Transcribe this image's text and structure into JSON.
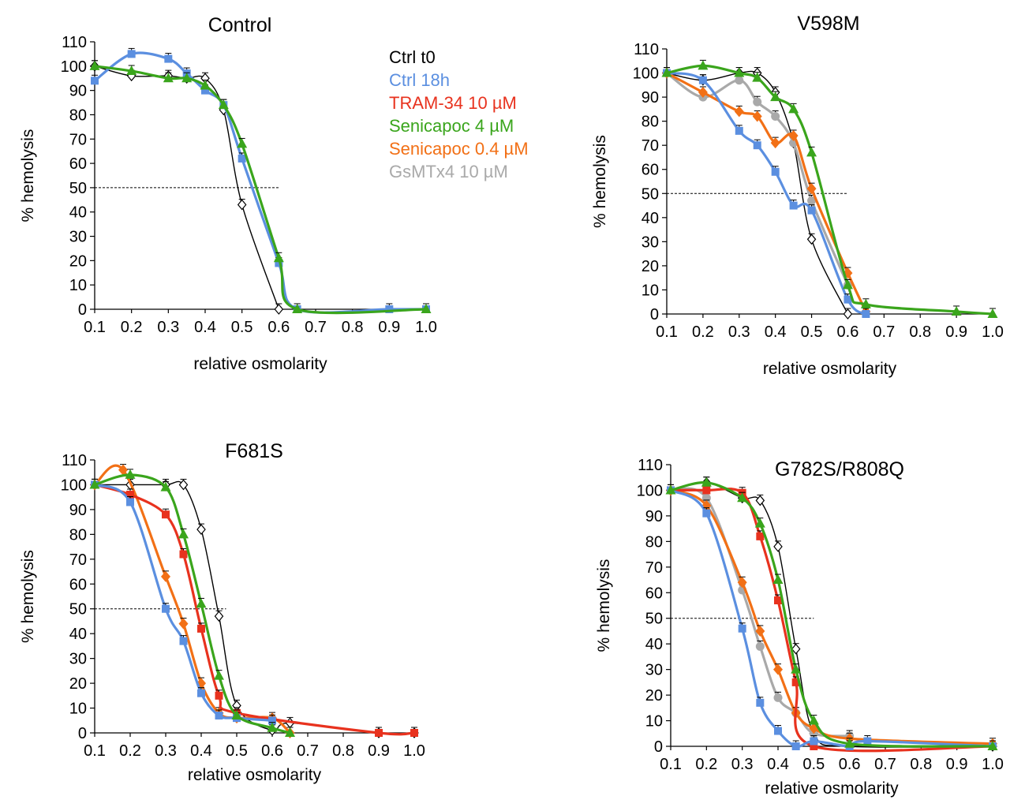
{
  "colors": {
    "ctrl_t0": "#000000",
    "ctrl_18h": "#5b8fe0",
    "tram34": "#e8321e",
    "senicapoc4": "#3aa51c",
    "senicapoc04": "#f27016",
    "gsmtx4": "#a9a9a9"
  },
  "legend": [
    {
      "key": "ctrl_t0",
      "label": "Ctrl t0"
    },
    {
      "key": "ctrl_18h",
      "label": "Ctrl 18h"
    },
    {
      "key": "tram34",
      "label": "TRAM-34 10 µM"
    },
    {
      "key": "senicapoc4",
      "label": "Senicapoc 4 µM"
    },
    {
      "key": "senicapoc04",
      "label": "Senicapoc 0.4 µM"
    },
    {
      "key": "gsmtx4",
      "label": "GsMTx4 10 µM"
    }
  ],
  "chart_data": [
    {
      "type": "line",
      "title": "Control",
      "xlabel": "relative  osmolarity",
      "ylabel": "% hemolysis",
      "xlim": [
        0.1,
        1.0
      ],
      "ylim": [
        0,
        110
      ],
      "xticks": [
        "0.1",
        "0.2",
        "0.3",
        "0.4",
        "0.5",
        "0.6",
        "0.7",
        "0.8",
        "0.9",
        "1.0"
      ],
      "yticks": [
        "0",
        "10",
        "20",
        "30",
        "40",
        "50",
        "60",
        "70",
        "80",
        "90",
        "100",
        "110"
      ],
      "threshold": {
        "y": 50,
        "x_end": 0.6
      },
      "series": [
        {
          "name": "Ctrl t0",
          "key": "ctrl_t0",
          "marker": "diamond-open",
          "x": [
            0.1,
            0.2,
            0.3,
            0.35,
            0.4,
            0.45,
            0.5,
            0.6
          ],
          "y": [
            100,
            96,
            96,
            95,
            95,
            82,
            43,
            0
          ]
        },
        {
          "name": "Ctrl 18h",
          "key": "ctrl_18h",
          "marker": "square",
          "x": [
            0.1,
            0.2,
            0.3,
            0.35,
            0.4,
            0.45,
            0.5,
            0.6,
            0.65,
            0.9,
            1.0
          ],
          "y": [
            94,
            105,
            103,
            97,
            90,
            84,
            62,
            19,
            0,
            0,
            0
          ]
        },
        {
          "name": "Senicapoc 4 µM",
          "key": "senicapoc4",
          "marker": "triangle",
          "x": [
            0.1,
            0.2,
            0.3,
            0.35,
            0.4,
            0.45,
            0.5,
            0.6,
            0.65,
            1.0
          ],
          "y": [
            100,
            98,
            95,
            95,
            92,
            84,
            68,
            21,
            0,
            0
          ]
        }
      ]
    },
    {
      "type": "line",
      "title": "V598M",
      "xlabel": "relative  osmolarity",
      "ylabel": "% hemolysis",
      "xlim": [
        0.1,
        1.0
      ],
      "ylim": [
        0,
        110
      ],
      "xticks": [
        "0.1",
        "0.2",
        "0.3",
        "0.4",
        "0.5",
        "0.6",
        "0.7",
        "0.8",
        "0.9",
        "1.0"
      ],
      "yticks": [
        "0",
        "10",
        "20",
        "30",
        "40",
        "50",
        "60",
        "70",
        "80",
        "90",
        "100",
        "110"
      ],
      "threshold": {
        "y": 50,
        "x_end": 0.6
      },
      "series": [
        {
          "name": "Ctrl t0",
          "key": "ctrl_t0",
          "marker": "diamond-open",
          "x": [
            0.1,
            0.2,
            0.3,
            0.35,
            0.4,
            0.45,
            0.5,
            0.6
          ],
          "y": [
            100,
            97,
            100,
            100,
            92,
            71,
            31,
            0
          ]
        },
        {
          "name": "Ctrl 18h",
          "key": "ctrl_18h",
          "marker": "square",
          "x": [
            0.1,
            0.2,
            0.3,
            0.35,
            0.4,
            0.45,
            0.5,
            0.6,
            0.65
          ],
          "y": [
            100,
            97,
            76,
            70,
            59,
            45,
            43,
            6,
            0
          ]
        },
        {
          "name": "Senicapoc 4 µM",
          "key": "senicapoc4",
          "marker": "triangle",
          "x": [
            0.1,
            0.2,
            0.3,
            0.35,
            0.4,
            0.45,
            0.5,
            0.6,
            0.65,
            0.9,
            1.0
          ],
          "y": [
            100,
            103,
            100,
            98,
            90,
            85,
            67,
            12,
            4,
            1,
            0
          ]
        },
        {
          "name": "Senicapoc 0.4 µM",
          "key": "senicapoc04",
          "marker": "diamond",
          "x": [
            0.1,
            0.2,
            0.3,
            0.35,
            0.4,
            0.45,
            0.5,
            0.6,
            0.65
          ],
          "y": [
            100,
            92,
            84,
            82,
            71,
            74,
            52,
            17,
            1
          ]
        },
        {
          "name": "GsMTx4 10 µM",
          "key": "gsmtx4",
          "marker": "circle",
          "x": [
            0.1,
            0.2,
            0.3,
            0.35,
            0.4,
            0.45,
            0.5,
            0.6
          ],
          "y": [
            100,
            90,
            97,
            88,
            82,
            71,
            47,
            12
          ]
        }
      ]
    },
    {
      "type": "line",
      "title": "F681S",
      "xlabel": "relative  osmolarity",
      "ylabel": "% hemolysis",
      "xlim": [
        0.1,
        1.0
      ],
      "ylim": [
        0,
        110
      ],
      "xticks": [
        "0.1",
        "0.2",
        "0.3",
        "0.4",
        "0.5",
        "0.6",
        "0.7",
        "0.8",
        "0.9",
        "1.0"
      ],
      "yticks": [
        "0",
        "10",
        "20",
        "30",
        "40",
        "50",
        "60",
        "70",
        "80",
        "90",
        "100",
        "110"
      ],
      "threshold": {
        "y": 50,
        "x_end": 0.47
      },
      "series": [
        {
          "name": "Ctrl t0",
          "key": "ctrl_t0",
          "marker": "diamond-open",
          "x": [
            0.1,
            0.2,
            0.3,
            0.35,
            0.4,
            0.45,
            0.5,
            0.6,
            0.65,
            0.9,
            1.0
          ],
          "y": [
            100,
            100,
            100,
            100,
            82,
            47,
            11,
            1,
            4,
            0,
            0
          ]
        },
        {
          "name": "Ctrl 18h",
          "key": "ctrl_18h",
          "marker": "square",
          "x": [
            0.1,
            0.2,
            0.3,
            0.35,
            0.4,
            0.45,
            0.5,
            0.6
          ],
          "y": [
            100,
            93,
            50,
            37,
            16,
            7,
            6,
            5
          ]
        },
        {
          "name": "TRAM-34 10 µM",
          "key": "tram34",
          "marker": "square",
          "x": [
            0.1,
            0.2,
            0.3,
            0.35,
            0.4,
            0.45,
            0.5,
            0.9,
            1.0
          ],
          "y": [
            100,
            96,
            88,
            72,
            42,
            15,
            8,
            0,
            0
          ]
        },
        {
          "name": "Senicapoc 4 µM",
          "key": "senicapoc4",
          "marker": "triangle",
          "x": [
            0.1,
            0.2,
            0.3,
            0.35,
            0.4,
            0.45,
            0.5,
            0.6,
            0.65
          ],
          "y": [
            100,
            104,
            99,
            80,
            52,
            23,
            7,
            2,
            0
          ]
        },
        {
          "name": "Senicapoc 0.4 µM",
          "key": "senicapoc04",
          "marker": "diamond",
          "x": [
            0.1,
            0.18,
            0.3,
            0.35,
            0.4,
            0.45,
            0.5,
            0.6,
            0.65
          ],
          "y": [
            100,
            106,
            63,
            44,
            20,
            8,
            6,
            6,
            0
          ]
        }
      ]
    },
    {
      "type": "line",
      "title": "G782S/R808Q",
      "xlabel": "relative  osmolarity",
      "ylabel": "% hemolysis",
      "xlim": [
        0.1,
        1.0
      ],
      "ylim": [
        0,
        110
      ],
      "xticks": [
        "0.1",
        "0.2",
        "0.3",
        "0.4",
        "0.5",
        "0.6",
        "0.7",
        "0.8",
        "0.9",
        "1.0"
      ],
      "yticks": [
        "0",
        "10",
        "20",
        "30",
        "40",
        "50",
        "60",
        "70",
        "80",
        "90",
        "100",
        "110"
      ],
      "threshold": {
        "y": 50,
        "x_end": 0.5
      },
      "series": [
        {
          "name": "Ctrl t0",
          "key": "ctrl_t0",
          "marker": "diamond-open",
          "x": [
            0.1,
            0.2,
            0.3,
            0.35,
            0.4,
            0.45,
            0.5,
            0.6,
            1.0
          ],
          "y": [
            100,
            103,
            97,
            96,
            78,
            38,
            5,
            0,
            0
          ]
        },
        {
          "name": "Ctrl 18h",
          "key": "ctrl_18h",
          "marker": "square",
          "x": [
            0.1,
            0.2,
            0.3,
            0.35,
            0.4,
            0.45,
            0.5,
            0.6,
            0.65,
            1.0
          ],
          "y": [
            100,
            91,
            46,
            17,
            6,
            0,
            2,
            0,
            2,
            0
          ]
        },
        {
          "name": "TRAM-34 10 µM",
          "key": "tram34",
          "marker": "square",
          "x": [
            0.1,
            0.2,
            0.3,
            0.35,
            0.4,
            0.45,
            0.5,
            1.0
          ],
          "y": [
            100,
            100,
            99,
            82,
            57,
            25,
            0,
            0
          ]
        },
        {
          "name": "Senicapoc 4 µM",
          "key": "senicapoc4",
          "marker": "triangle",
          "x": [
            0.1,
            0.2,
            0.3,
            0.35,
            0.4,
            0.45,
            0.5,
            0.6,
            1.0
          ],
          "y": [
            100,
            103,
            97,
            87,
            65,
            30,
            10,
            1,
            0
          ]
        },
        {
          "name": "Senicapoc 0.4 µM",
          "key": "senicapoc04",
          "marker": "diamond",
          "x": [
            0.1,
            0.2,
            0.3,
            0.35,
            0.4,
            0.45,
            0.5,
            0.6,
            1.0
          ],
          "y": [
            100,
            94,
            64,
            45,
            30,
            13,
            7,
            3,
            1
          ]
        },
        {
          "name": "GsMTx4 10 µM",
          "key": "gsmtx4",
          "marker": "circle",
          "x": [
            0.1,
            0.2,
            0.3,
            0.35,
            0.4,
            0.45,
            0.5,
            0.6
          ],
          "y": [
            100,
            97,
            61,
            39,
            19,
            13,
            5,
            4
          ]
        }
      ]
    }
  ]
}
